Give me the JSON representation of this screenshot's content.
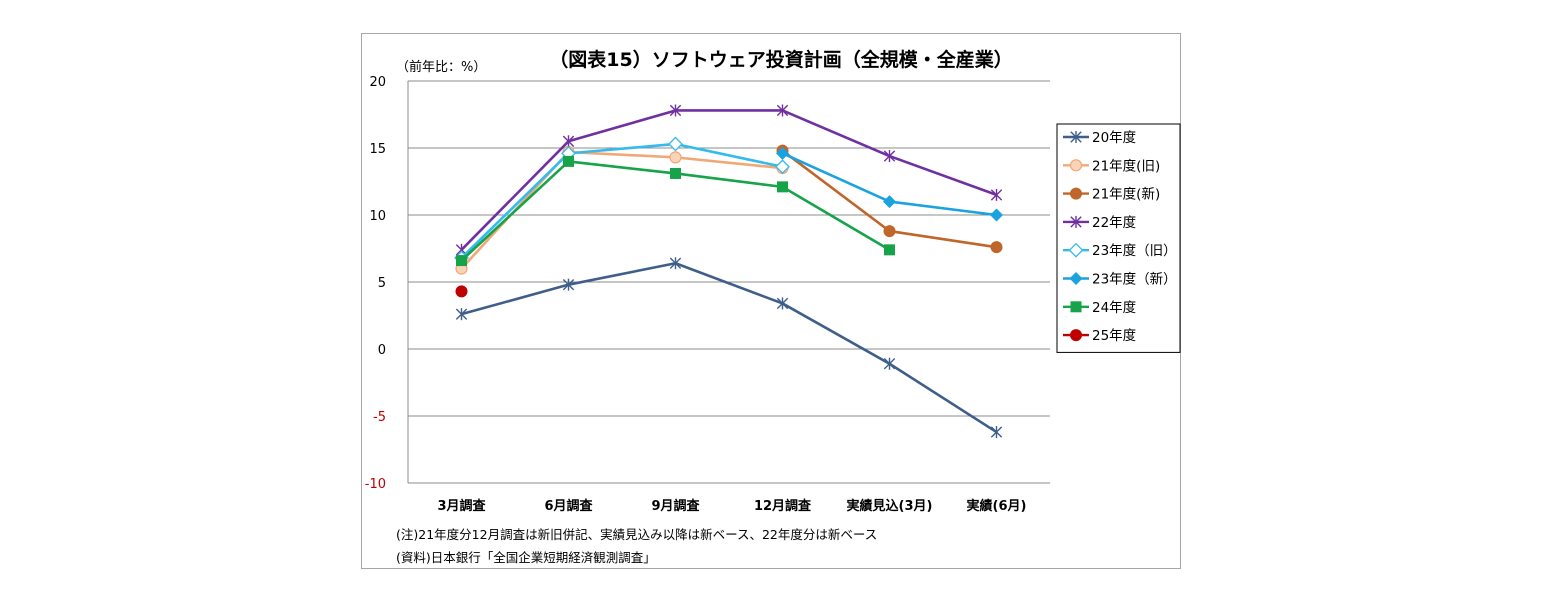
{
  "chart_data": {
    "type": "line",
    "title": "（図表15）ソフトウェア投資計画（全規模・全産業）",
    "ylabel": "（前年比：%）",
    "xlabel": "",
    "categories": [
      "3月調査",
      "6月調査",
      "9月調査",
      "12月調査",
      "実績見込(3月)",
      "実績(6月)"
    ],
    "ylim": [
      -10,
      20
    ],
    "yticks": [
      20,
      15,
      10,
      5,
      0,
      -5,
      -10
    ],
    "grid": true,
    "legend": "right",
    "series": [
      {
        "name": "20年度",
        "color": "#3f5f8a",
        "marker": "asterisk",
        "values": [
          2.6,
          4.8,
          6.4,
          3.4,
          -1.1,
          -6.2
        ]
      },
      {
        "name": "21年度(旧)",
        "color": "#f0a877",
        "marker": "circle-open",
        "values": [
          6.0,
          14.7,
          14.3,
          13.5,
          null,
          null
        ]
      },
      {
        "name": "21年度(新)",
        "color": "#c0662a",
        "marker": "circle",
        "values": [
          null,
          null,
          null,
          14.8,
          8.8,
          7.6
        ]
      },
      {
        "name": "22年度",
        "color": "#7030a0",
        "marker": "asterisk",
        "values": [
          7.4,
          15.5,
          17.8,
          17.8,
          14.4,
          11.5
        ]
      },
      {
        "name": "23年度（旧）",
        "color": "#33bbee",
        "marker": "diamond-open",
        "values": [
          6.8,
          14.6,
          15.3,
          13.6,
          null,
          null
        ]
      },
      {
        "name": "23年度（新）",
        "color": "#1aa3df",
        "marker": "diamond",
        "values": [
          null,
          null,
          null,
          14.6,
          11.0,
          10.0
        ]
      },
      {
        "name": "24年度",
        "color": "#17a34a",
        "marker": "square",
        "values": [
          6.6,
          14.0,
          13.1,
          12.1,
          7.4,
          null
        ]
      },
      {
        "name": "25年度",
        "color": "#c00000",
        "marker": "circle",
        "values": [
          4.3,
          null,
          null,
          null,
          null,
          null
        ]
      }
    ]
  },
  "notes": {
    "note1": "(注)21年度分12月調査は新旧併記、実績見込み以降は新ベース、22年度分は新ベース",
    "note2": "(資料)日本銀行「全国企業短期経済観測調査」"
  }
}
